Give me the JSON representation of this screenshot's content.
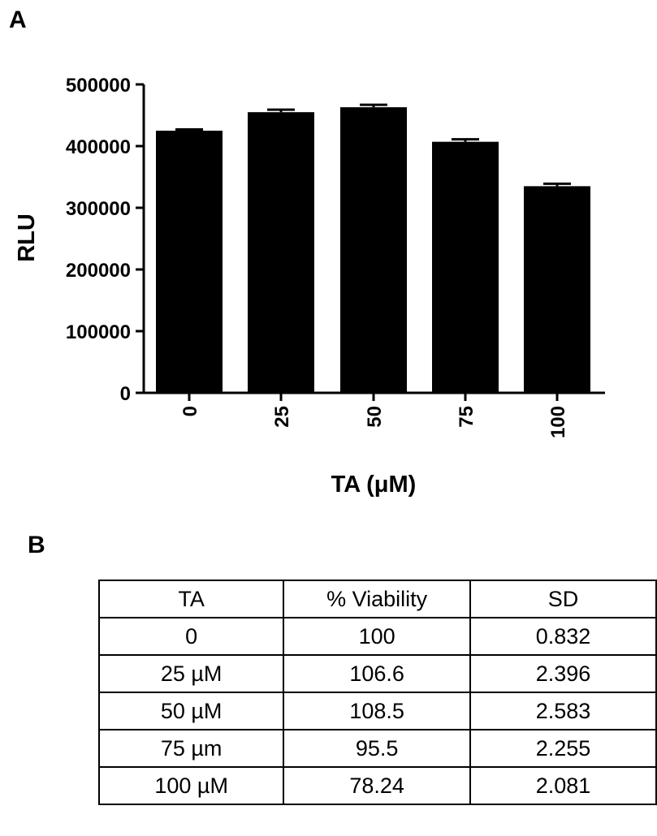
{
  "panels": {
    "a_label": "A",
    "b_label": "B"
  },
  "chart_data": {
    "type": "bar",
    "categories": [
      "0",
      "25",
      "50",
      "75",
      "100"
    ],
    "values": [
      425000,
      455000,
      463000,
      407000,
      335000
    ],
    "error_upper": [
      427000,
      459000,
      467000,
      411000,
      339000
    ],
    "xlabel": "TA (μM)",
    "ylabel": "RLU",
    "yticks": [
      "0",
      "100000",
      "200000",
      "300000",
      "400000",
      "500000"
    ],
    "ylim": [
      0,
      500000
    ],
    "grid": false,
    "bar_color": "#000000"
  },
  "table": {
    "headers": [
      "TA",
      "% Viability",
      "SD"
    ],
    "rows": [
      [
        "0",
        "100",
        "0.832"
      ],
      [
        "25 µM",
        "106.6",
        "2.396"
      ],
      [
        "50 µM",
        "108.5",
        "2.583"
      ],
      [
        "75 µm",
        "95.5",
        "2.255"
      ],
      [
        "100 µM",
        "78.24",
        "2.081"
      ]
    ]
  }
}
